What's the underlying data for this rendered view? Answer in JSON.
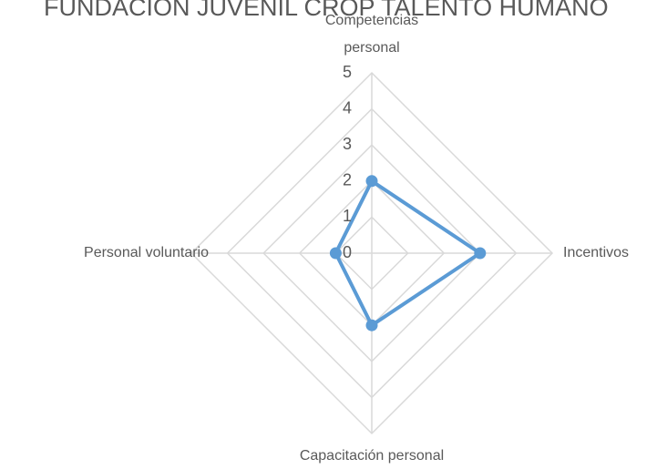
{
  "chart_data": {
    "type": "radar",
    "title": "FUNDACION JUVENIL CROP TALENTO HUMANO",
    "categories": [
      "Competencias personal",
      "Incentivos",
      "Capacitación personal",
      "Personal voluntario"
    ],
    "values": [
      2,
      3,
      2,
      1
    ],
    "color": "#5b9bd5",
    "rlim": [
      0,
      5
    ],
    "rticks": [
      0,
      1,
      2,
      3,
      4,
      5
    ],
    "grid": true
  }
}
